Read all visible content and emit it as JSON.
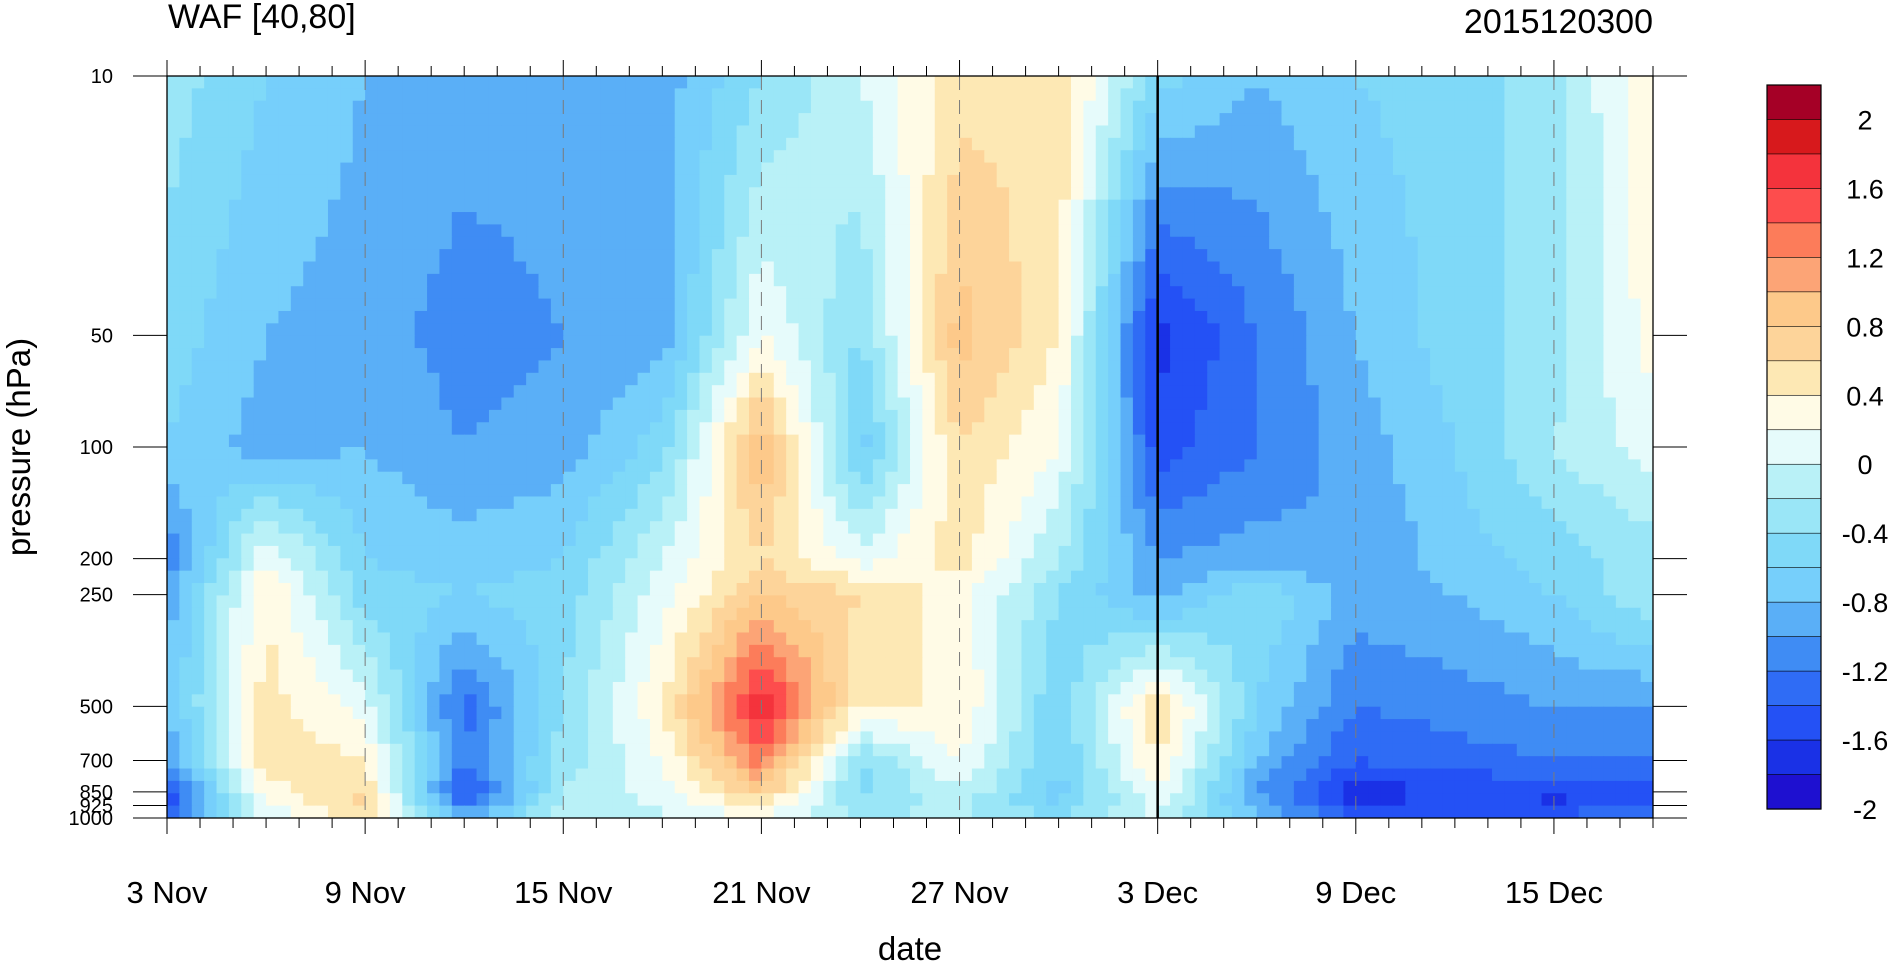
{
  "chart_data": {
    "type": "heatmap",
    "title_left": "WAF [40,80]",
    "title_right": "2015120300",
    "xlabel": "date",
    "ylabel": "pressure (hPa)",
    "x_tick_labels": [
      "3 Nov",
      "9 Nov",
      "15 Nov",
      "21 Nov",
      "27 Nov",
      "3 Dec",
      "9 Dec",
      "15 Dec"
    ],
    "x_tick_days": [
      0,
      6,
      12,
      18,
      24,
      30,
      36,
      42
    ],
    "x_range_days": [
      0,
      45
    ],
    "y_tick_labels": [
      "10",
      "50",
      "100",
      "200",
      "250",
      "500",
      "700",
      "850",
      "925",
      "1000"
    ],
    "y_tick_values": [
      10,
      50,
      100,
      200,
      250,
      500,
      700,
      850,
      925,
      1000
    ],
    "y_scale": "log",
    "y_range": [
      10,
      1000
    ],
    "forecast_start": "3 Dec",
    "colorbar": {
      "tick_labels": [
        "2",
        "1.6",
        "1.2",
        "0.8",
        "0.4",
        "0",
        "-0.4",
        "-0.8",
        "-1.2",
        "-1.6",
        "-2"
      ],
      "levels": [
        2,
        1.8,
        1.6,
        1.4,
        1.2,
        1.0,
        0.8,
        0.6,
        0.4,
        0.2,
        0,
        -0.2,
        -0.4,
        -0.6,
        -0.8,
        -1.0,
        -1.2,
        -1.4,
        -1.6,
        -1.8,
        -2
      ],
      "colors": [
        "#a50026",
        "#d7191c",
        "#f4333c",
        "#fd4d4d",
        "#fc7c5a",
        "#fca476",
        "#fdc98a",
        "#fdd49a",
        "#fde8b4",
        "#fffbe6",
        "#e6fbfb",
        "#b9f1f7",
        "#9ae6f7",
        "#7fd9f8",
        "#76cffb",
        "#5aaff7",
        "#3f8cf4",
        "#2f6cf5",
        "#2451f5",
        "#1a31e6",
        "#1e10d0"
      ]
    },
    "days": [
      0,
      3,
      6,
      9,
      12,
      15,
      18,
      21,
      24,
      27,
      30,
      33,
      36,
      39,
      42,
      45
    ],
    "pressure_levels": [
      10,
      50,
      100,
      200,
      250,
      500,
      700,
      850,
      925,
      1000
    ],
    "waf": [
      [
        -0.3,
        -0.6,
        -0.8,
        -0.9,
        -0.9,
        -0.9,
        -0.4,
        0.0,
        0.5,
        0.6,
        -0.5,
        -0.8,
        -0.6,
        -0.5,
        -0.3,
        0.4
      ],
      [
        -0.5,
        -0.8,
        -0.9,
        -1.1,
        -1.0,
        -0.9,
        0.2,
        -0.4,
        0.9,
        0.4,
        -1.7,
        -1.2,
        -0.8,
        -0.5,
        -0.3,
        0.3
      ],
      [
        -0.6,
        -0.9,
        -0.8,
        -1.0,
        -0.9,
        -0.5,
        1.0,
        -0.7,
        0.6,
        0.2,
        -1.5,
        -1.2,
        -0.9,
        -0.6,
        -0.2,
        0.1
      ],
      [
        -1.2,
        0.2,
        -0.6,
        -0.7,
        -0.6,
        0.0,
        0.6,
        0.1,
        0.5,
        -0.2,
        -1.0,
        -0.9,
        -1.0,
        -0.7,
        -0.5,
        -0.3
      ],
      [
        -0.9,
        0.4,
        -0.5,
        -0.6,
        -0.5,
        0.1,
        0.8,
        0.6,
        0.3,
        -0.4,
        -0.9,
        -0.4,
        -0.9,
        -0.8,
        -0.6,
        -0.2
      ],
      [
        -0.8,
        0.5,
        0.1,
        -1.3,
        -0.4,
        0.4,
        1.8,
        0.4,
        0.4,
        -0.6,
        0.6,
        -0.6,
        -1.2,
        -1.1,
        -1.0,
        -1.0
      ],
      [
        -1.0,
        0.6,
        0.4,
        -1.2,
        -0.3,
        0.2,
        1.3,
        -0.4,
        0.2,
        -0.6,
        0.4,
        -0.8,
        -1.4,
        -1.3,
        -1.2,
        -1.2
      ],
      [
        -1.4,
        0.3,
        0.6,
        -1.5,
        -0.2,
        0.1,
        0.8,
        -0.5,
        0.0,
        -0.7,
        0.2,
        -1.0,
        -1.7,
        -1.6,
        -1.5,
        -1.5
      ],
      [
        -1.6,
        0.2,
        0.7,
        -1.2,
        -0.1,
        0.0,
        0.4,
        -0.3,
        -0.2,
        -0.6,
        0.1,
        -0.9,
        -1.6,
        -1.5,
        -1.7,
        -1.4
      ],
      [
        -1.3,
        0.0,
        0.5,
        -0.9,
        -0.1,
        0.0,
        0.2,
        -0.2,
        -0.1,
        -0.4,
        0.0,
        -0.7,
        -1.4,
        -1.3,
        -1.2,
        -1.1
      ]
    ]
  }
}
